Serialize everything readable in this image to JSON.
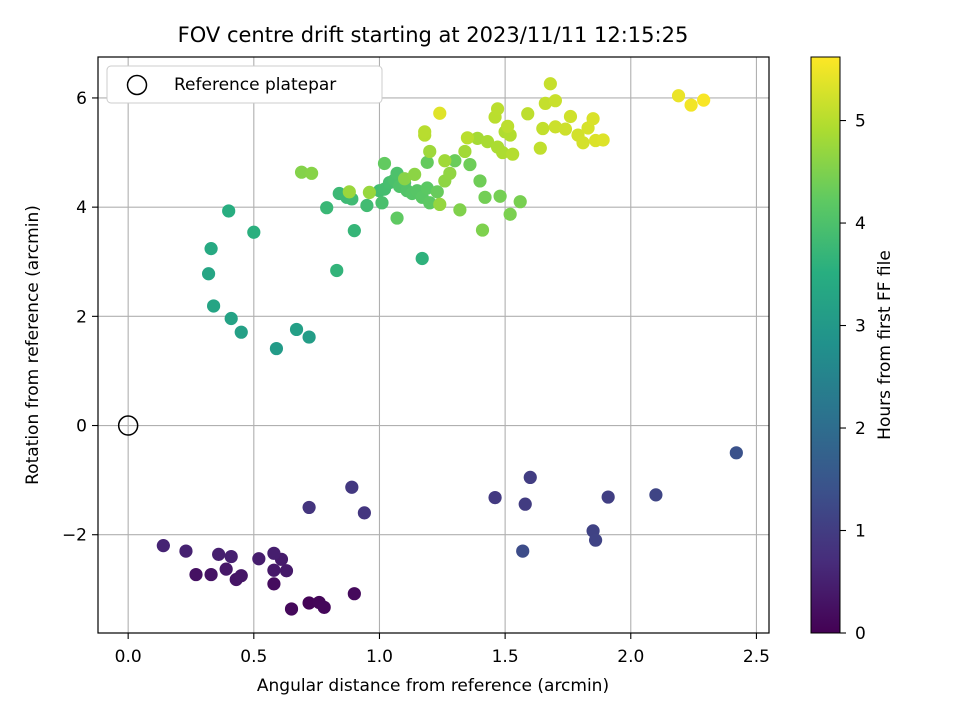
{
  "chart_data": {
    "type": "scatter",
    "title": "FOV centre drift starting at 2023/11/11 12:15:25",
    "xlabel": "Angular distance from reference (arcmin)",
    "ylabel": "Rotation from reference (arcmin)",
    "xlim": [
      -0.12,
      2.55
    ],
    "ylim": [
      -3.8,
      6.75
    ],
    "xticks": [
      0.0,
      0.5,
      1.0,
      1.5,
      2.0,
      2.5
    ],
    "xtick_labels": [
      "0.0",
      "0.5",
      "1.0",
      "1.5",
      "2.0",
      "2.5"
    ],
    "yticks": [
      -2,
      0,
      2,
      4,
      6
    ],
    "ytick_labels": [
      "−2",
      "0",
      "2",
      "4",
      "6"
    ],
    "grid": true,
    "legend": {
      "position": "top-left",
      "entries": [
        "Reference platepar"
      ]
    },
    "reference_point": {
      "x": 0.0,
      "y": 0.0
    },
    "colorbar": {
      "label": "Hours from first FF file",
      "colormap": "viridis",
      "range": [
        0,
        5.62
      ],
      "ticks": [
        0,
        1,
        2,
        3,
        4,
        5
      ],
      "tick_labels": [
        "0",
        "1",
        "2",
        "3",
        "4",
        "5"
      ]
    },
    "points": [
      {
        "x": 0.72,
        "y": -3.25,
        "c": 0.05
      },
      {
        "x": 0.76,
        "y": -3.24,
        "c": 0.08
      },
      {
        "x": 0.78,
        "y": -3.33,
        "c": 0.1
      },
      {
        "x": 0.65,
        "y": -3.36,
        "c": 0.12
      },
      {
        "x": 0.9,
        "y": -3.08,
        "c": 0.14
      },
      {
        "x": 0.58,
        "y": -2.9,
        "c": 0.18
      },
      {
        "x": 0.27,
        "y": -2.73,
        "c": 0.25
      },
      {
        "x": 0.33,
        "y": -2.73,
        "c": 0.28
      },
      {
        "x": 0.43,
        "y": -2.82,
        "c": 0.3
      },
      {
        "x": 0.45,
        "y": -2.75,
        "c": 0.33
      },
      {
        "x": 0.39,
        "y": -2.63,
        "c": 0.36
      },
      {
        "x": 0.58,
        "y": -2.65,
        "c": 0.38
      },
      {
        "x": 0.63,
        "y": -2.66,
        "c": 0.4
      },
      {
        "x": 0.61,
        "y": -2.45,
        "c": 0.42
      },
      {
        "x": 0.52,
        "y": -2.44,
        "c": 0.45
      },
      {
        "x": 0.58,
        "y": -2.34,
        "c": 0.47
      },
      {
        "x": 0.36,
        "y": -2.36,
        "c": 0.49
      },
      {
        "x": 0.41,
        "y": -2.4,
        "c": 0.5
      },
      {
        "x": 0.23,
        "y": -2.3,
        "c": 0.52
      },
      {
        "x": 0.14,
        "y": -2.2,
        "c": 0.55
      },
      {
        "x": 0.72,
        "y": -1.5,
        "c": 0.85
      },
      {
        "x": 0.94,
        "y": -1.6,
        "c": 0.88
      },
      {
        "x": 0.89,
        "y": -1.13,
        "c": 0.92
      },
      {
        "x": 1.46,
        "y": -1.32,
        "c": 0.95
      },
      {
        "x": 1.58,
        "y": -1.44,
        "c": 0.98
      },
      {
        "x": 1.6,
        "y": -0.95,
        "c": 1.0
      },
      {
        "x": 1.91,
        "y": -1.31,
        "c": 1.05
      },
      {
        "x": 1.85,
        "y": -1.93,
        "c": 1.1
      },
      {
        "x": 1.86,
        "y": -2.1,
        "c": 1.12
      },
      {
        "x": 2.1,
        "y": -1.27,
        "c": 1.15
      },
      {
        "x": 1.57,
        "y": -2.3,
        "c": 1.3
      },
      {
        "x": 2.42,
        "y": -0.5,
        "c": 1.4
      },
      {
        "x": 0.59,
        "y": 1.41,
        "c": 3.05
      },
      {
        "x": 0.72,
        "y": 1.62,
        "c": 3.1
      },
      {
        "x": 0.67,
        "y": 1.76,
        "c": 3.15
      },
      {
        "x": 0.45,
        "y": 1.71,
        "c": 3.18
      },
      {
        "x": 0.41,
        "y": 1.96,
        "c": 3.22
      },
      {
        "x": 0.34,
        "y": 2.19,
        "c": 3.26
      },
      {
        "x": 0.32,
        "y": 2.78,
        "c": 3.3
      },
      {
        "x": 0.33,
        "y": 3.24,
        "c": 3.38
      },
      {
        "x": 0.4,
        "y": 3.93,
        "c": 3.5
      },
      {
        "x": 0.5,
        "y": 3.54,
        "c": 3.55
      },
      {
        "x": 1.17,
        "y": 3.06,
        "c": 3.6
      },
      {
        "x": 0.83,
        "y": 2.84,
        "c": 3.65
      },
      {
        "x": 0.9,
        "y": 3.57,
        "c": 3.7
      },
      {
        "x": 0.79,
        "y": 3.99,
        "c": 3.75
      },
      {
        "x": 0.84,
        "y": 4.25,
        "c": 3.78
      },
      {
        "x": 0.87,
        "y": 4.18,
        "c": 3.8
      },
      {
        "x": 0.89,
        "y": 4.15,
        "c": 3.82
      },
      {
        "x": 0.95,
        "y": 4.03,
        "c": 3.85
      },
      {
        "x": 1.0,
        "y": 4.3,
        "c": 3.87
      },
      {
        "x": 1.02,
        "y": 4.33,
        "c": 3.9
      },
      {
        "x": 1.04,
        "y": 4.45,
        "c": 3.92
      },
      {
        "x": 1.01,
        "y": 4.08,
        "c": 3.95
      },
      {
        "x": 1.06,
        "y": 4.5,
        "c": 3.97
      },
      {
        "x": 1.07,
        "y": 4.62,
        "c": 4.0
      },
      {
        "x": 1.08,
        "y": 4.38,
        "c": 4.02
      },
      {
        "x": 1.1,
        "y": 4.45,
        "c": 4.05
      },
      {
        "x": 1.11,
        "y": 4.3,
        "c": 4.07
      },
      {
        "x": 1.13,
        "y": 4.25,
        "c": 4.1
      },
      {
        "x": 1.15,
        "y": 4.3,
        "c": 4.12
      },
      {
        "x": 1.17,
        "y": 4.18,
        "c": 4.15
      },
      {
        "x": 1.19,
        "y": 4.35,
        "c": 4.18
      },
      {
        "x": 1.2,
        "y": 4.08,
        "c": 4.2
      },
      {
        "x": 1.07,
        "y": 3.8,
        "c": 4.22
      },
      {
        "x": 1.02,
        "y": 4.8,
        "c": 4.25
      },
      {
        "x": 1.19,
        "y": 4.82,
        "c": 4.27
      },
      {
        "x": 1.23,
        "y": 4.28,
        "c": 4.3
      },
      {
        "x": 1.3,
        "y": 4.85,
        "c": 4.32
      },
      {
        "x": 1.36,
        "y": 4.78,
        "c": 4.35
      },
      {
        "x": 1.4,
        "y": 4.48,
        "c": 4.37
      },
      {
        "x": 1.42,
        "y": 4.18,
        "c": 4.4
      },
      {
        "x": 1.48,
        "y": 4.2,
        "c": 4.42
      },
      {
        "x": 1.56,
        "y": 4.1,
        "c": 4.45
      },
      {
        "x": 1.52,
        "y": 3.87,
        "c": 4.47
      },
      {
        "x": 1.41,
        "y": 3.58,
        "c": 4.5
      },
      {
        "x": 1.32,
        "y": 3.95,
        "c": 4.52
      },
      {
        "x": 0.69,
        "y": 4.64,
        "c": 4.55
      },
      {
        "x": 0.73,
        "y": 4.62,
        "c": 4.58
      },
      {
        "x": 1.1,
        "y": 4.52,
        "c": 4.6
      },
      {
        "x": 1.14,
        "y": 4.6,
        "c": 4.62
      },
      {
        "x": 1.26,
        "y": 4.48,
        "c": 4.65
      },
      {
        "x": 1.28,
        "y": 4.62,
        "c": 4.67
      },
      {
        "x": 1.24,
        "y": 4.05,
        "c": 4.7
      },
      {
        "x": 0.96,
        "y": 4.27,
        "c": 4.72
      },
      {
        "x": 0.88,
        "y": 4.28,
        "c": 4.75
      },
      {
        "x": 1.2,
        "y": 5.02,
        "c": 4.78
      },
      {
        "x": 1.26,
        "y": 4.85,
        "c": 4.8
      },
      {
        "x": 1.34,
        "y": 5.02,
        "c": 4.82
      },
      {
        "x": 1.39,
        "y": 5.26,
        "c": 4.85
      },
      {
        "x": 1.43,
        "y": 5.2,
        "c": 4.87
      },
      {
        "x": 1.47,
        "y": 5.1,
        "c": 4.9
      },
      {
        "x": 1.49,
        "y": 5.0,
        "c": 4.92
      },
      {
        "x": 1.5,
        "y": 5.38,
        "c": 4.94
      },
      {
        "x": 1.52,
        "y": 5.32,
        "c": 4.96
      },
      {
        "x": 1.53,
        "y": 4.97,
        "c": 4.98
      },
      {
        "x": 1.18,
        "y": 5.32,
        "c": 5.0
      },
      {
        "x": 1.18,
        "y": 5.38,
        "c": 5.01
      },
      {
        "x": 1.35,
        "y": 5.27,
        "c": 5.02
      },
      {
        "x": 1.46,
        "y": 5.65,
        "c": 5.03
      },
      {
        "x": 1.47,
        "y": 5.8,
        "c": 5.04
      },
      {
        "x": 1.51,
        "y": 5.48,
        "c": 5.05
      },
      {
        "x": 1.59,
        "y": 5.71,
        "c": 5.06
      },
      {
        "x": 1.64,
        "y": 5.08,
        "c": 5.08
      },
      {
        "x": 1.65,
        "y": 5.44,
        "c": 5.1
      },
      {
        "x": 1.66,
        "y": 5.9,
        "c": 5.12
      },
      {
        "x": 1.68,
        "y": 6.26,
        "c": 5.14
      },
      {
        "x": 1.7,
        "y": 5.95,
        "c": 5.16
      },
      {
        "x": 1.7,
        "y": 5.47,
        "c": 5.18
      },
      {
        "x": 1.74,
        "y": 5.43,
        "c": 5.2
      },
      {
        "x": 1.76,
        "y": 5.66,
        "c": 5.22
      },
      {
        "x": 1.79,
        "y": 5.32,
        "c": 5.24
      },
      {
        "x": 1.81,
        "y": 5.18,
        "c": 5.26
      },
      {
        "x": 1.83,
        "y": 5.45,
        "c": 5.28
      },
      {
        "x": 1.85,
        "y": 5.62,
        "c": 5.3
      },
      {
        "x": 1.86,
        "y": 5.22,
        "c": 5.32
      },
      {
        "x": 1.89,
        "y": 5.23,
        "c": 5.34
      },
      {
        "x": 1.24,
        "y": 5.72,
        "c": 5.36
      },
      {
        "x": 2.19,
        "y": 6.04,
        "c": 5.45
      },
      {
        "x": 2.24,
        "y": 5.87,
        "c": 5.52
      },
      {
        "x": 2.29,
        "y": 5.96,
        "c": 5.58
      }
    ]
  }
}
